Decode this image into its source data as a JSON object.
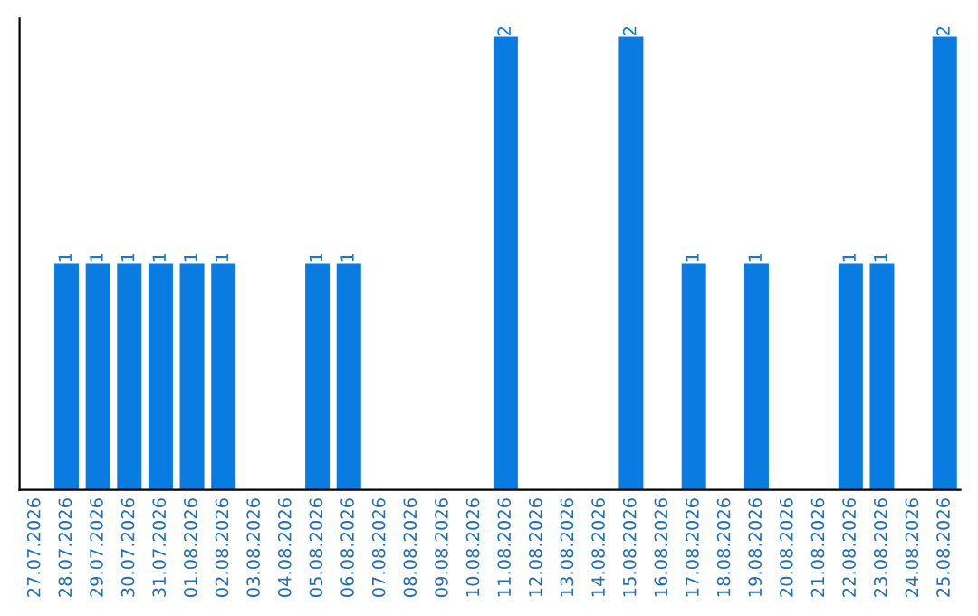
{
  "chart_data": {
    "type": "bar",
    "categories": [
      "27.07.2026",
      "28.07.2026",
      "29.07.2026",
      "30.07.2026",
      "31.07.2026",
      "01.08.2026",
      "02.08.2026",
      "03.08.2026",
      "04.08.2026",
      "05.08.2026",
      "06.08.2026",
      "07.08.2026",
      "08.08.2026",
      "09.08.2026",
      "10.08.2026",
      "11.08.2026",
      "12.08.2026",
      "13.08.2026",
      "14.08.2026",
      "15.08.2026",
      "16.08.2026",
      "17.08.2026",
      "18.08.2026",
      "19.08.2026",
      "20.08.2026",
      "21.08.2026",
      "22.08.2026",
      "23.08.2026",
      "24.08.2026",
      "25.08.2026"
    ],
    "values": [
      0,
      1,
      1,
      1,
      1,
      1,
      1,
      0,
      0,
      1,
      1,
      0,
      0,
      0,
      0,
      2,
      0,
      0,
      0,
      2,
      0,
      1,
      0,
      1,
      0,
      0,
      1,
      1,
      0,
      2
    ],
    "value_labels": [
      null,
      "1",
      "1",
      "1",
      "1",
      "1",
      "1",
      null,
      null,
      "1",
      "1",
      null,
      null,
      null,
      null,
      "2",
      null,
      null,
      null,
      "2",
      null,
      "1",
      null,
      "1",
      null,
      null,
      "1",
      "1",
      null,
      "2"
    ],
    "color": "#0a7be0",
    "tick_labels": "x",
    "grid": false
  }
}
